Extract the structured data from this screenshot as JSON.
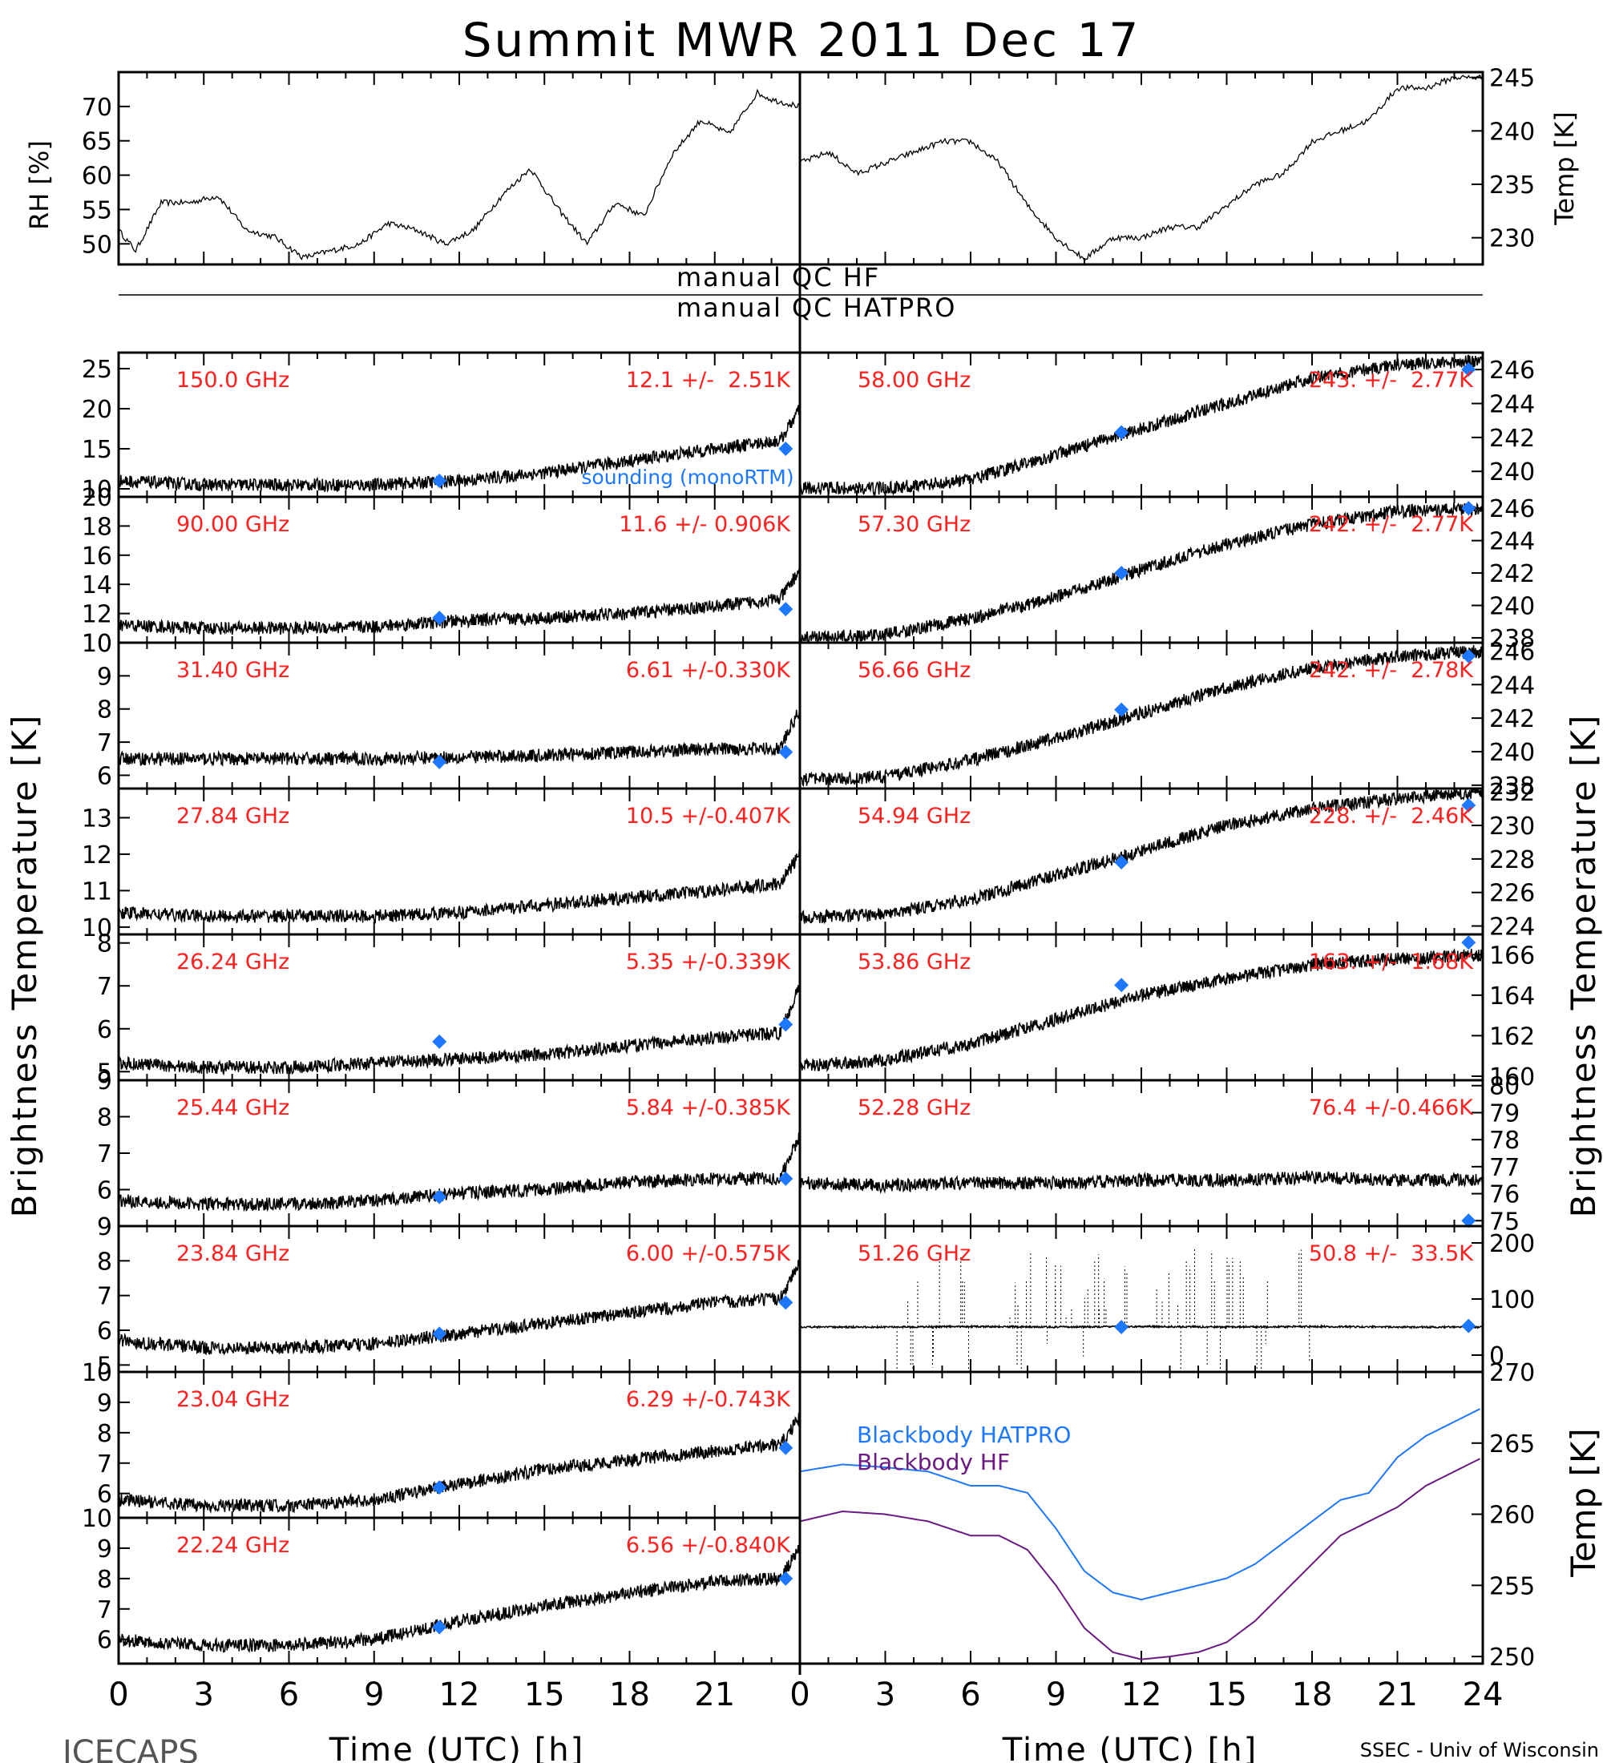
{
  "title": "Summit MWR 2011 Dec 17",
  "footer": {
    "left": "ICECAPS",
    "right": "SSEC - Univ of Wisconsin",
    "xlabel": "Time (UTC) [h]"
  },
  "labels": {
    "rh_axis": "RH [%]",
    "temp_axis": "Temp [K]",
    "tb_axis": "Brightness Temperature [K]",
    "bb_axis": "Temp [K]",
    "qc_hf": "manual QC HF",
    "qc_hatpro": "manual QC HATPRO",
    "sounding": "sounding (monoRTM)",
    "bb_hatpro": "Blackbody HATPRO",
    "bb_hf": "Blackbody HF"
  },
  "colors": {
    "data": "#000000",
    "freq_label": "#ff2020",
    "sounding": "#1e78ff",
    "bb_hatpro": "#1e78ff",
    "bb_hf": "#6a1a80"
  },
  "chart_data": [
    {
      "type": "line",
      "id": "rh",
      "ylabel": "RH [%]",
      "xlim": [
        0,
        24
      ],
      "ylim": [
        47,
        75
      ],
      "yticks": [
        50,
        55,
        60,
        65,
        70
      ],
      "x": [
        0,
        0.6,
        1.5,
        2.5,
        3.5,
        4.5,
        5.5,
        6.5,
        7.5,
        8.5,
        9.5,
        10.5,
        11.5,
        12.5,
        13.5,
        14.5,
        15.5,
        16.5,
        17.5,
        18.5,
        19.5,
        20.5,
        21.5,
        22.5,
        23,
        24
      ],
      "y": [
        52,
        49,
        56,
        56,
        57,
        52,
        51,
        48,
        49,
        50,
        53,
        52,
        50,
        52,
        57,
        61,
        55,
        50,
        56,
        54,
        63,
        68,
        66,
        72,
        71,
        70
      ]
    },
    {
      "type": "line",
      "id": "temp",
      "ylabel": "Temp [K]",
      "xlim": [
        0,
        24
      ],
      "ylim": [
        227.5,
        245.5
      ],
      "yticks": [
        230,
        235,
        240,
        245
      ],
      "x": [
        0,
        1,
        2,
        3,
        4,
        5,
        6,
        7,
        8,
        9,
        10,
        11,
        12,
        13,
        14,
        15,
        16,
        17,
        18,
        19,
        20,
        21,
        22,
        23,
        24
      ],
      "y": [
        237,
        238,
        236,
        237,
        238,
        239,
        239,
        237,
        233,
        230,
        228,
        230,
        230,
        231,
        231,
        233,
        235,
        236,
        239,
        240,
        241,
        244,
        244,
        245,
        245
      ]
    },
    {
      "type": "line",
      "id": "hf-150",
      "channel": "150.0 GHz",
      "stats": "12.1 +/-  2.51K",
      "xlim": [
        0,
        24
      ],
      "ylim": [
        9,
        27
      ],
      "yticks": [
        10,
        15,
        20,
        25
      ],
      "x": [
        0,
        3,
        6,
        9,
        12,
        15,
        18,
        21,
        23.3,
        24
      ],
      "y": [
        11,
        10.5,
        10.5,
        10.5,
        11,
        12,
        13.5,
        15,
        16,
        20
      ],
      "sounding": [
        [
          11.3,
          11
        ],
        [
          23.5,
          15
        ]
      ]
    },
    {
      "type": "line",
      "id": "hf-90",
      "channel": "90.00 GHz",
      "stats": "11.6 +/- 0.906K",
      "xlim": [
        0,
        24
      ],
      "ylim": [
        10,
        20
      ],
      "yticks": [
        10,
        12,
        14,
        16,
        18,
        20
      ],
      "x": [
        0,
        3,
        6,
        9,
        12,
        15,
        18,
        21,
        23.3,
        24
      ],
      "y": [
        11.2,
        11,
        11,
        11.1,
        11.5,
        11.7,
        12,
        12.5,
        13,
        15
      ],
      "sounding": [
        [
          11.3,
          11.7
        ],
        [
          23.5,
          12.3
        ]
      ]
    },
    {
      "type": "line",
      "id": "hf-31",
      "channel": "31.40 GHz",
      "stats": "6.61 +/-0.330K",
      "xlim": [
        0,
        24
      ],
      "ylim": [
        5.6,
        10
      ],
      "yticks": [
        6,
        7,
        8,
        9,
        10
      ],
      "x": [
        0,
        3,
        6,
        9,
        12,
        15,
        18,
        21,
        23.3,
        24
      ],
      "y": [
        6.5,
        6.5,
        6.5,
        6.5,
        6.55,
        6.6,
        6.7,
        6.8,
        6.8,
        8
      ],
      "sounding": [
        [
          11.3,
          6.4
        ],
        [
          23.5,
          6.7
        ]
      ]
    },
    {
      "type": "line",
      "id": "hf-27",
      "channel": "27.84 GHz",
      "stats": "10.5 +/-0.407K",
      "xlim": [
        0,
        24
      ],
      "ylim": [
        9.8,
        13.8
      ],
      "yticks": [
        10,
        11,
        12,
        13
      ],
      "x": [
        0,
        3,
        6,
        9,
        12,
        15,
        18,
        21,
        23.3,
        24
      ],
      "y": [
        10.4,
        10.3,
        10.3,
        10.3,
        10.4,
        10.6,
        10.8,
        11,
        11.2,
        12
      ],
      "sounding": []
    },
    {
      "type": "line",
      "id": "hf-26",
      "channel": "26.24 GHz",
      "stats": "5.35 +/-0.339K",
      "xlim": [
        0,
        24
      ],
      "ylim": [
        4.8,
        8.2
      ],
      "yticks": [
        5,
        6,
        7,
        8
      ],
      "x": [
        0,
        3,
        6,
        9,
        12,
        15,
        18,
        21,
        23.3,
        24
      ],
      "y": [
        5.2,
        5.1,
        5.1,
        5.2,
        5.3,
        5.4,
        5.6,
        5.8,
        5.9,
        7
      ],
      "sounding": [
        [
          11.3,
          5.7
        ],
        [
          23.5,
          6.1
        ]
      ]
    },
    {
      "type": "line",
      "id": "hf-25",
      "channel": "25.44 GHz",
      "stats": "5.84 +/-0.385K",
      "xlim": [
        0,
        24
      ],
      "ylim": [
        5,
        9
      ],
      "yticks": [
        6,
        7,
        8,
        9
      ],
      "x": [
        0,
        3,
        6,
        9,
        12,
        15,
        18,
        21,
        23.3,
        24
      ],
      "y": [
        5.7,
        5.6,
        5.6,
        5.7,
        5.9,
        6,
        6.2,
        6.3,
        6.3,
        7.5
      ],
      "sounding": [
        [
          11.3,
          5.8
        ],
        [
          23.5,
          6.3
        ]
      ]
    },
    {
      "type": "line",
      "id": "hf-23-84",
      "channel": "23.84 GHz",
      "stats": "6.00 +/-0.575K",
      "xlim": [
        0,
        24
      ],
      "ylim": [
        4.8,
        9
      ],
      "yticks": [
        5,
        6,
        7,
        8,
        9
      ],
      "x": [
        0,
        3,
        6,
        9,
        12,
        15,
        18,
        21,
        23.3,
        24
      ],
      "y": [
        5.7,
        5.5,
        5.5,
        5.6,
        5.9,
        6.2,
        6.5,
        6.8,
        6.9,
        8
      ],
      "sounding": [
        [
          11.3,
          5.9
        ],
        [
          23.5,
          6.8
        ]
      ]
    },
    {
      "type": "line",
      "id": "hf-23-04",
      "channel": "23.04 GHz",
      "stats": "6.29 +/-0.743K",
      "xlim": [
        0,
        24
      ],
      "ylim": [
        5.2,
        10
      ],
      "yticks": [
        6,
        7,
        8,
        9,
        10
      ],
      "x": [
        0,
        3,
        6,
        9,
        12,
        15,
        18,
        21,
        23.3,
        24
      ],
      "y": [
        5.8,
        5.6,
        5.6,
        5.8,
        6.3,
        6.8,
        7.1,
        7.4,
        7.6,
        8.5
      ],
      "sounding": [
        [
          11.3,
          6.2
        ],
        [
          23.5,
          7.5
        ]
      ]
    },
    {
      "type": "line",
      "id": "hf-22",
      "channel": "22.24 GHz",
      "stats": "6.56 +/-0.840K",
      "xlim": [
        0,
        24
      ],
      "ylim": [
        5.2,
        10
      ],
      "yticks": [
        6,
        7,
        8,
        9,
        10
      ],
      "x": [
        0,
        3,
        6,
        9,
        12,
        15,
        18,
        21,
        23.3,
        24
      ],
      "y": [
        6,
        5.8,
        5.8,
        6,
        6.6,
        7.1,
        7.5,
        7.9,
        8,
        9
      ],
      "sounding": [
        [
          11.3,
          6.4
        ],
        [
          23.5,
          8
        ]
      ]
    },
    {
      "type": "line",
      "id": "hp-58",
      "channel": "58.00 GHz",
      "stats": "243. +/-  2.77K",
      "xlim": [
        0,
        24
      ],
      "ylim": [
        238.5,
        247
      ],
      "yticks": [
        240,
        242,
        244,
        246
      ],
      "x": [
        0,
        3,
        6,
        9,
        12,
        15,
        18,
        21,
        24
      ],
      "y": [
        239,
        239,
        239.5,
        241,
        242.5,
        244,
        245.5,
        246.3,
        246.5
      ],
      "sounding": [
        [
          11.3,
          242.3
        ],
        [
          23.5,
          246
        ]
      ]
    },
    {
      "type": "line",
      "id": "hp-57",
      "channel": "57.30 GHz",
      "stats": "242. +/-  2.77K",
      "xlim": [
        0,
        24
      ],
      "ylim": [
        237.7,
        246.7
      ],
      "yticks": [
        238,
        240,
        242,
        244,
        246
      ],
      "x": [
        0,
        3,
        6,
        9,
        12,
        15,
        18,
        21,
        24
      ],
      "y": [
        238,
        238.2,
        239.2,
        240.5,
        242.2,
        243.8,
        245,
        245.8,
        246
      ],
      "sounding": [
        [
          11.3,
          242
        ],
        [
          23.5,
          246
        ]
      ]
    },
    {
      "type": "line",
      "id": "hp-56",
      "channel": "56.66 GHz",
      "stats": "242. +/-  2.78K",
      "xlim": [
        0,
        24
      ],
      "ylim": [
        237.8,
        246.5
      ],
      "yticks": [
        238,
        240,
        242,
        244,
        246
      ],
      "x": [
        0,
        3,
        6,
        9,
        12,
        15,
        18,
        21,
        24
      ],
      "y": [
        238.3,
        238.5,
        239.5,
        240.8,
        242.3,
        243.8,
        245,
        245.7,
        246
      ],
      "sounding": [
        [
          11.3,
          242.5
        ],
        [
          23.5,
          245.7
        ]
      ]
    },
    {
      "type": "line",
      "id": "hp-54",
      "channel": "54.94 GHz",
      "stats": "228. +/-  2.46K",
      "xlim": [
        0,
        24
      ],
      "ylim": [
        223.5,
        232.2
      ],
      "yticks": [
        224,
        226,
        228,
        230,
        232
      ],
      "x": [
        0,
        3,
        6,
        9,
        12,
        15,
        18,
        21,
        24
      ],
      "y": [
        224.5,
        224.7,
        225.6,
        227,
        228.5,
        230,
        231,
        231.6,
        232
      ],
      "sounding": [
        [
          11.3,
          227.8
        ],
        [
          23.5,
          231.2
        ]
      ]
    },
    {
      "type": "line",
      "id": "hp-53",
      "channel": "53.86 GHz",
      "stats": "163. +/-  1.68K",
      "xlim": [
        0,
        24
      ],
      "ylim": [
        159.8,
        167
      ],
      "yticks": [
        160,
        162,
        164,
        166
      ],
      "x": [
        0,
        3,
        6,
        9,
        12,
        15,
        18,
        21,
        24
      ],
      "y": [
        160.5,
        160.8,
        161.6,
        162.8,
        164,
        164.8,
        165.5,
        165.8,
        166
      ],
      "sounding": [
        [
          11.3,
          164.5
        ],
        [
          23.5,
          166.6
        ]
      ]
    },
    {
      "type": "line",
      "id": "hp-52",
      "channel": "52.28 GHz",
      "stats": "76.4 +/-0.466K",
      "xlim": [
        0,
        24
      ],
      "ylim": [
        74.8,
        80.2
      ],
      "yticks": [
        75,
        76,
        77,
        78,
        79,
        80
      ],
      "x": [
        0,
        3,
        6,
        9,
        12,
        15,
        18,
        21,
        24
      ],
      "y": [
        76.4,
        76.3,
        76.4,
        76.4,
        76.5,
        76.5,
        76.6,
        76.5,
        76.5
      ],
      "sounding": [
        [
          23.5,
          75
        ]
      ]
    },
    {
      "type": "line",
      "id": "hp-51",
      "channel": "51.26 GHz",
      "stats": "50.8 +/-  33.5K",
      "xlim": [
        0,
        24
      ],
      "ylim": [
        -30,
        230
      ],
      "yticks": [
        0,
        100,
        200
      ],
      "x": [
        0,
        3,
        6,
        9,
        12,
        15,
        18,
        21,
        24
      ],
      "y": [
        50,
        50,
        51,
        50,
        51,
        50,
        51,
        50,
        50
      ],
      "sounding": [
        [
          11.3,
          50
        ],
        [
          23.5,
          52
        ]
      ]
    },
    {
      "type": "line",
      "id": "blackbody",
      "ylabel": "Temp [K]",
      "xlim": [
        0,
        24
      ],
      "ylim": [
        249.5,
        270
      ],
      "yticks": [
        250,
        255,
        260,
        265,
        270
      ],
      "x": [
        0,
        1.5,
        3,
        4.5,
        6,
        7,
        8,
        9,
        10,
        11,
        12,
        13,
        14,
        15,
        16,
        17,
        18,
        19,
        20,
        21,
        22,
        23,
        24
      ],
      "series": [
        {
          "name": "Blackbody HATPRO",
          "values": [
            263,
            263.5,
            263.3,
            263,
            262,
            262,
            261.5,
            259,
            256,
            254.5,
            254,
            254.5,
            255,
            255.5,
            256.5,
            258,
            259.5,
            261,
            261.5,
            264,
            265.5,
            266.5,
            267.5
          ]
        },
        {
          "name": "Blackbody HF",
          "values": [
            259.5,
            260.2,
            260,
            259.5,
            258.5,
            258.5,
            257.5,
            255,
            252,
            250.3,
            249.8,
            250,
            250.3,
            251,
            252.5,
            254.5,
            256.5,
            258.5,
            259.5,
            260.5,
            262,
            263,
            264
          ]
        }
      ]
    }
  ]
}
